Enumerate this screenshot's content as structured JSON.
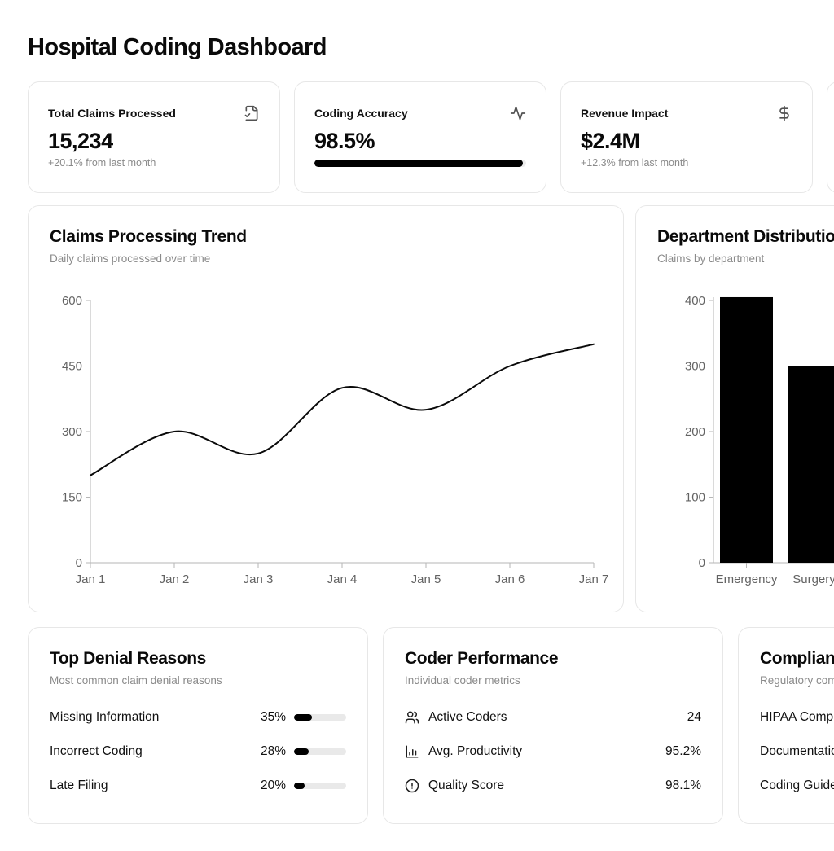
{
  "page_title": "Hospital Coding Dashboard",
  "stat_cards": [
    {
      "title": "Total Claims Processed",
      "icon": "file-check-icon",
      "value": "15,234",
      "subtext": "+20.1% from last month"
    },
    {
      "title": "Coding Accuracy",
      "icon": "activity-icon",
      "value": "98.5%",
      "progress_pct": 98.5
    },
    {
      "title": "Revenue Impact",
      "icon": "dollar-sign-icon",
      "value": "$2.4M",
      "subtext": "+12.3% from last month"
    }
  ],
  "chart_data": [
    {
      "type": "line",
      "title": "Claims Processing Trend",
      "subtitle": "Daily claims processed over time",
      "x": [
        "Jan 1",
        "Jan 2",
        "Jan 3",
        "Jan 4",
        "Jan 5",
        "Jan 6",
        "Jan 7"
      ],
      "values": [
        200,
        300,
        250,
        400,
        350,
        450,
        500
      ],
      "ylim": [
        0,
        600
      ],
      "yticks": [
        0,
        150,
        300,
        450,
        600
      ],
      "line_color": "#0a0a0a",
      "grid": false,
      "legend": "none"
    },
    {
      "type": "bar",
      "title": "Department Distribution",
      "subtitle": "Claims by department",
      "categories": [
        "Emergency",
        "Surgery"
      ],
      "values": [
        405,
        300
      ],
      "ylim": [
        0,
        405
      ],
      "yticks": [
        0,
        100,
        200,
        300,
        400
      ],
      "bar_color": "#000000",
      "grid": false,
      "legend": "none"
    }
  ],
  "denial_reasons": {
    "title": "Top Denial Reasons",
    "subtitle": "Most common claim denial reasons",
    "rows": [
      {
        "label": "Missing Information",
        "pct": "35%",
        "pct_value": 35
      },
      {
        "label": "Incorrect Coding",
        "pct": "28%",
        "pct_value": 28
      },
      {
        "label": "Late Filing",
        "pct": "20%",
        "pct_value": 20
      }
    ]
  },
  "coder_performance": {
    "title": "Coder Performance",
    "subtitle": "Individual coder metrics",
    "rows": [
      {
        "icon": "users-icon",
        "label": "Active Coders",
        "value": "24"
      },
      {
        "icon": "bar-chart-icon",
        "label": "Avg. Productivity",
        "value": "95.2%"
      },
      {
        "icon": "alert-circle-icon",
        "label": "Quality Score",
        "value": "98.1%"
      }
    ]
  },
  "compliance": {
    "title": "Compliance",
    "subtitle": "Regulatory compliance status",
    "rows": [
      {
        "label": "HIPAA Compliance"
      },
      {
        "label": "Documentation"
      },
      {
        "label": "Coding Guidelines"
      }
    ]
  },
  "colors": {
    "accent": "#000000",
    "muted_text": "#8a8a8a",
    "axis": "#b6b6b6",
    "tick_text": "#636363",
    "track": "#ececec",
    "border": "#e7e7e7"
  }
}
